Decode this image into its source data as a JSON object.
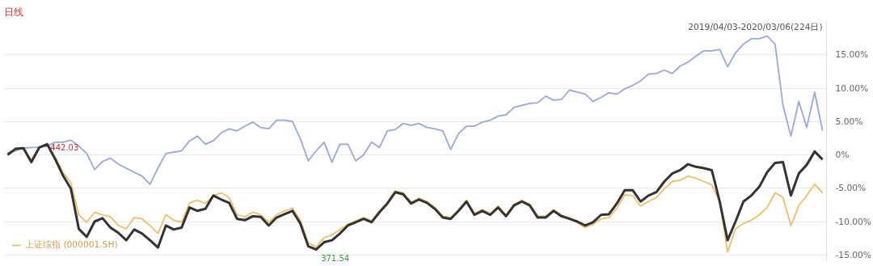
{
  "chart_data": {
    "type": "line",
    "title": "日线",
    "annotations": [
      "2019/04/03-2020/03/06(224日)",
      {
        "text": "442.03",
        "y": 1.6
      },
      "371.54"
    ],
    "categories": [
      null,
      null,
      null,
      null,
      null,
      null,
      null,
      null,
      null,
      null,
      null,
      null,
      null,
      null,
      null,
      null,
      null,
      null,
      null,
      null,
      null,
      null,
      null,
      null,
      null,
      null,
      null,
      null,
      null,
      null,
      null,
      null,
      null,
      null,
      null,
      null,
      null,
      null,
      null,
      null,
      null,
      null,
      null,
      null,
      null,
      null,
      null,
      null,
      null,
      null,
      null,
      null,
      null,
      null,
      null,
      null,
      null,
      null,
      null,
      null,
      null,
      null,
      null,
      null,
      null,
      null,
      null,
      null,
      null,
      null,
      null,
      null,
      null,
      null,
      null,
      null,
      null,
      null,
      null,
      null,
      null,
      null,
      null,
      null,
      null,
      null,
      null,
      null,
      null,
      null,
      null,
      null,
      null,
      null,
      null,
      null,
      null,
      null,
      null,
      null,
      null,
      null,
      null,
      null
    ],
    "series": [
      {
        "color": "#9aa8d8",
        "values": [
          0.3,
          0.6,
          1.0,
          1.1,
          1.1,
          1.3,
          1.9,
          1.9,
          2.2,
          1.3,
          0.2,
          -2.2,
          -1.0,
          -0.5,
          -1.4,
          -2.0,
          -2.6,
          -3.2,
          -4.4,
          -2.0,
          0.2,
          0.4,
          0.6,
          2.1,
          2.8,
          1.6,
          2.1,
          3.3,
          3.9,
          3.6,
          4.3,
          4.9,
          4.1,
          3.9,
          5.2,
          5.2,
          5.0,
          2.4,
          -0.9,
          0.6,
          1.9,
          -1.1,
          1.6,
          1.6,
          -0.9,
          0,
          1.9,
          1.1,
          3.6,
          3.8,
          4.7,
          4.4,
          4.7,
          4.1,
          3.9,
          3.6,
          0.8,
          3.2,
          4.3,
          4.3,
          4.9,
          5.2,
          5.8,
          6.0,
          7.1,
          7.4,
          7.7,
          7.8,
          8.8,
          8.2,
          8.3,
          9.7,
          9.4,
          9.1,
          8.0,
          8.6,
          9.3,
          9.1,
          9.9,
          10.4,
          11.1,
          12.1,
          12.2,
          12.7,
          12.2,
          13.3,
          13.9,
          14.8,
          15.6,
          15.6,
          15.8,
          13.2,
          15.3,
          16.6,
          17.4,
          17.4,
          17.8,
          16.6,
          7.4,
          2.8,
          8.0,
          4.1,
          9.4,
          3.6
        ]
      },
      {
        "name": "上证综指 (000001.SH)",
        "color": "#e8c070",
        "values": [
          null,
          null,
          1.0,
          -0.8,
          1.1,
          1.5,
          -0.4,
          -2.6,
          -4.2,
          -9.0,
          -10.1,
          -8.6,
          -9.0,
          -9.3,
          -10.6,
          -11.1,
          -9.4,
          -9.6,
          -10.6,
          -11.8,
          -9.0,
          -9.8,
          -10.1,
          -7.2,
          -6.8,
          -7.3,
          -6.1,
          -5.7,
          -6.4,
          -9.0,
          -9.3,
          -8.6,
          -9.0,
          -10.1,
          -9.0,
          -8.4,
          -8.0,
          -9.8,
          -13.2,
          -13.8,
          -12.4,
          -12.0,
          -11.2,
          -10.4,
          -9.9,
          -9.4,
          -9.9,
          -8.4,
          -7.1,
          -5.4,
          -5.7,
          -7.1,
          -6.5,
          -7.0,
          -7.9,
          -9.2,
          -9.4,
          -8.2,
          -6.8,
          -8.8,
          -8.2,
          -8.8,
          -7.7,
          -9.0,
          -7.4,
          -6.8,
          -7.4,
          -9.2,
          -9.2,
          -8.2,
          -9.0,
          -9.4,
          -10.2,
          -10.9,
          -10.4,
          -9.6,
          -9.4,
          -8.0,
          -6.0,
          -6.1,
          -7.7,
          -7.0,
          -6.4,
          -5.1,
          -4.0,
          -3.8,
          -3.2,
          -3.5,
          -4.0,
          -4.5,
          -7.0,
          -14.6,
          -11.1,
          -10.3,
          -9.8,
          -9.0,
          -7.9,
          -5.7,
          -6.4,
          -10.6,
          -7.6,
          -6.1,
          -4.4,
          -5.7
        ]
      },
      {
        "color": "#333333",
        "values": [
          0,
          0.9,
          1.0,
          -1.1,
          1.1,
          1.6,
          -0.6,
          -3.1,
          -5.1,
          -11.1,
          -12.3,
          -10.0,
          -9.5,
          -10.9,
          -11.7,
          -12.8,
          -11.2,
          -11.8,
          -12.8,
          -13.9,
          -10.6,
          -11.2,
          -10.9,
          -7.9,
          -8.4,
          -8.1,
          -6.1,
          -6.7,
          -7.2,
          -9.6,
          -9.8,
          -9.2,
          -9.3,
          -10.6,
          -9.4,
          -8.9,
          -8.4,
          -10.3,
          -13.7,
          -14.2,
          -13.1,
          -12.8,
          -11.8,
          -10.6,
          -10.1,
          -9.6,
          -10.1,
          -8.6,
          -7.3,
          -5.6,
          -5.9,
          -7.3,
          -6.7,
          -7.2,
          -8.1,
          -9.4,
          -9.6,
          -8.4,
          -7.0,
          -9.0,
          -8.4,
          -9.0,
          -7.9,
          -9.2,
          -7.6,
          -7.0,
          -7.6,
          -9.4,
          -9.4,
          -8.4,
          -9.2,
          -9.6,
          -10.0,
          -10.6,
          -10.1,
          -9.0,
          -8.9,
          -7.3,
          -5.3,
          -5.3,
          -7.0,
          -6.1,
          -5.6,
          -4.0,
          -2.8,
          -2.3,
          -1.4,
          -1.8,
          -2.0,
          -2.3,
          -7.0,
          -12.8,
          -10.0,
          -7.0,
          -6.1,
          -4.8,
          -2.6,
          -1.2,
          -1.1,
          -6.1,
          -2.8,
          -1.5,
          0.5,
          -0.7
        ]
      }
    ],
    "ylim": [
      -16,
      20
    ],
    "yticks": [
      {
        "value": -15,
        "label": "-15.00%"
      },
      {
        "value": -10,
        "label": "-10.00%"
      },
      {
        "value": -5,
        "label": "-5.00%"
      },
      {
        "value": 0,
        "label": "0%"
      },
      {
        "value": 5,
        "label": "5.00%"
      },
      {
        "value": 10,
        "label": "10.00%"
      },
      {
        "value": 15,
        "label": "15.00%"
      }
    ],
    "tick_labels": "y",
    "grid": "y",
    "legend": "bottom left",
    "marker": "none",
    "line_style": "solid"
  }
}
